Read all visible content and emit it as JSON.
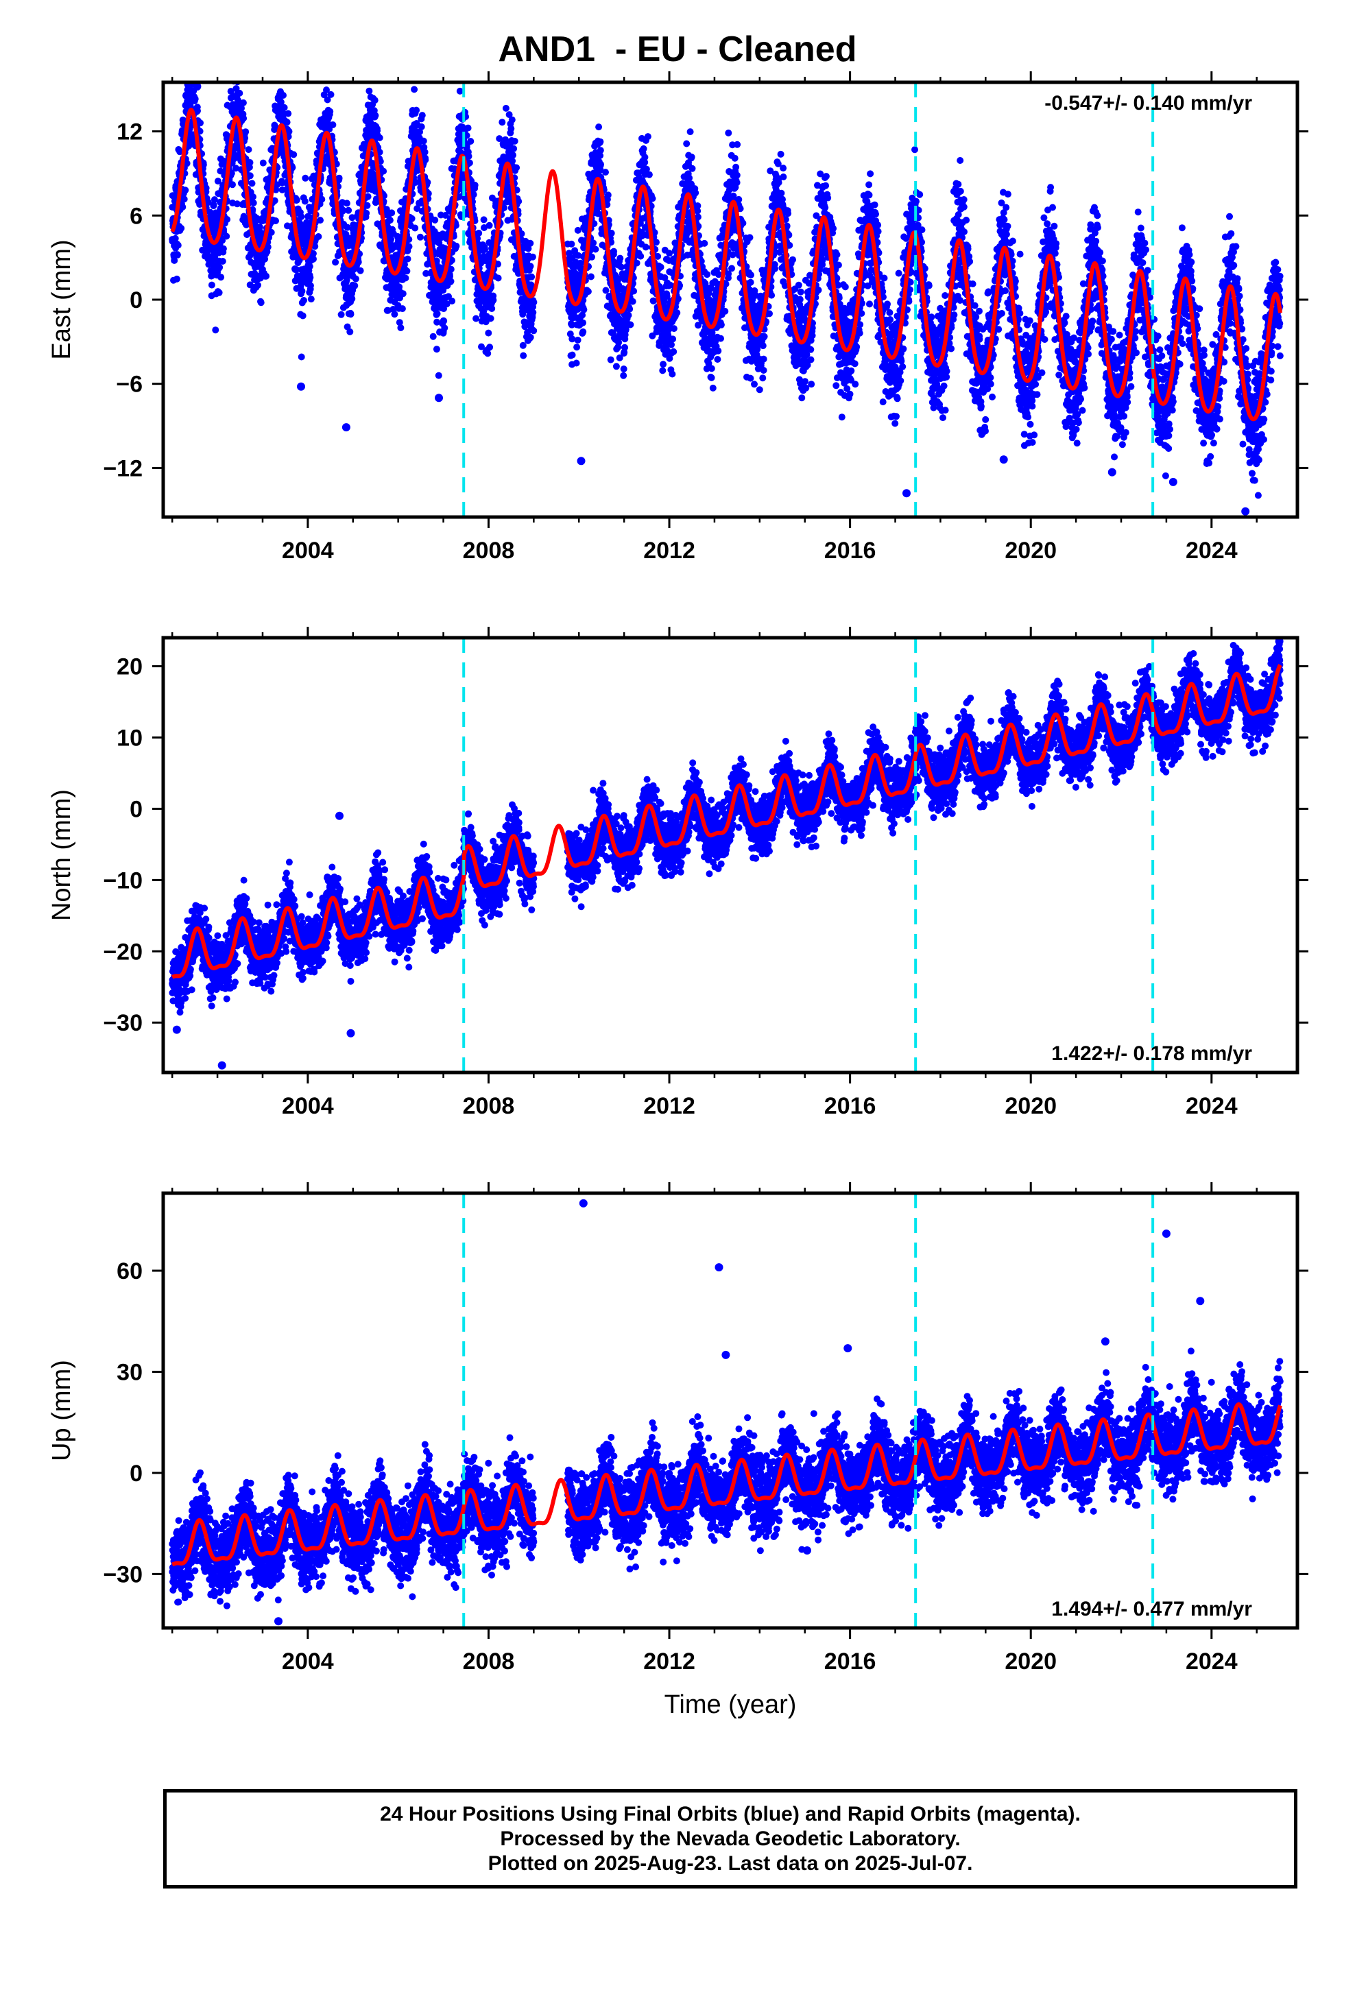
{
  "title": "AND1  - EU - Cleaned",
  "xlabel": "Time (year)",
  "footer": {
    "line1": "24 Hour Positions Using Final Orbits (blue) and Rapid Orbits (magenta).",
    "line2": "Processed by the Nevada Geodetic Laboratory.",
    "line3": "Plotted on 2025-Aug-23. Last data on 2025-Jul-07."
  },
  "colors": {
    "data": "#0000ff",
    "model": "#ff0000",
    "steps": "#00e5ee",
    "frame": "#000000"
  },
  "chart_data": [
    {
      "type": "scatter",
      "name": "east",
      "ylabel": "East (mm)",
      "rate": "-0.547+/- 0.140 mm/yr",
      "rate_position": "top-right",
      "xlim": [
        2000.8,
        2025.9
      ],
      "ylim": [
        -15.5,
        15.5
      ],
      "xticks": [
        "2004",
        "2008",
        "2012",
        "2016",
        "2020",
        "2024"
      ],
      "yticks": [
        "12",
        "6",
        "0",
        "-6",
        "-12"
      ],
      "ytick_values": [
        12,
        6,
        0,
        -6,
        -12
      ],
      "data_start": 2001.0,
      "data_end": 2025.52,
      "gap": [
        2009.0,
        2009.75
      ],
      "model": {
        "t0": 2013.0,
        "offset": 2.0,
        "trend": -0.547,
        "annual_amp": 4.6,
        "annual_peak": 0.42,
        "semiannual_amp": 0.6,
        "noise": 1.8
      },
      "step_epochs": [
        2007.45,
        2017.45,
        2022.7
      ],
      "outliers": [
        [
          2001.55,
          15.2
        ],
        [
          2005.3,
          12.8
        ],
        [
          2004.85,
          -9.1
        ],
        [
          2003.85,
          -6.2
        ],
        [
          2006.9,
          -7.0
        ],
        [
          2010.05,
          -11.5
        ],
        [
          2017.25,
          -13.8
        ],
        [
          2019.4,
          -11.4
        ],
        [
          2021.8,
          -12.3
        ],
        [
          2023.15,
          -13.0
        ],
        [
          2024.75,
          -15.1
        ]
      ]
    },
    {
      "type": "scatter",
      "name": "north",
      "ylabel": "North (mm)",
      "rate": "1.422+/- 0.178 mm/yr",
      "rate_position": "bottom-right",
      "xlim": [
        2000.8,
        2025.9
      ],
      "ylim": [
        -37,
        24
      ],
      "xticks": [
        "2004",
        "2008",
        "2012",
        "2016",
        "2020",
        "2024"
      ],
      "yticks": [
        "20",
        "10",
        "0",
        "-10",
        "-20",
        "-30"
      ],
      "ytick_values": [
        20,
        10,
        0,
        -10,
        -20,
        -30
      ],
      "data_start": 2001.0,
      "data_end": 2025.52,
      "gap": [
        2009.0,
        2009.75
      ],
      "model": {
        "t0": 2013.0,
        "offset": -4.5,
        "trend": 1.422,
        "annual_amp": 3.0,
        "annual_peak": 0.55,
        "semiannual_amp": 1.0,
        "noise": 2.0,
        "steps": [
          [
            2007.45,
            3.0
          ]
        ]
      },
      "step_epochs": [
        2007.45,
        2017.45,
        2022.7
      ],
      "outliers": [
        [
          2002.1,
          -36.0
        ],
        [
          2004.95,
          -31.5
        ],
        [
          2004.7,
          -1.0
        ],
        [
          2025.5,
          23.5
        ],
        [
          2001.1,
          -31.0
        ]
      ]
    },
    {
      "type": "scatter",
      "name": "up",
      "ylabel": "Up (mm)",
      "rate": "1.494+/- 0.477 mm/yr",
      "rate_position": "bottom-right",
      "xlim": [
        2000.8,
        2025.9
      ],
      "ylim": [
        -46,
        83
      ],
      "xticks": [
        "2004",
        "2008",
        "2012",
        "2016",
        "2020",
        "2024"
      ],
      "yticks": [
        "60",
        "30",
        "0",
        "-30"
      ],
      "ytick_values": [
        60,
        30,
        0,
        -30
      ],
      "data_start": 2001.0,
      "data_end": 2025.52,
      "gap": [
        2009.0,
        2009.75
      ],
      "model": {
        "t0": 2013.0,
        "offset": -5.0,
        "trend": 1.494,
        "annual_amp": 6.0,
        "annual_peak": 0.6,
        "semiannual_amp": 2.0,
        "noise": 5.5
      },
      "step_epochs": [
        2007.45,
        2017.45,
        2022.7
      ],
      "outliers": [
        [
          2010.1,
          80.0
        ],
        [
          2013.1,
          61.0
        ],
        [
          2013.25,
          35.0
        ],
        [
          2015.95,
          37.0
        ],
        [
          2023.0,
          71.0
        ],
        [
          2023.75,
          51.0
        ],
        [
          2003.35,
          -44.0
        ],
        [
          2015.05,
          -23.0
        ],
        [
          2021.65,
          39.0
        ]
      ]
    }
  ]
}
